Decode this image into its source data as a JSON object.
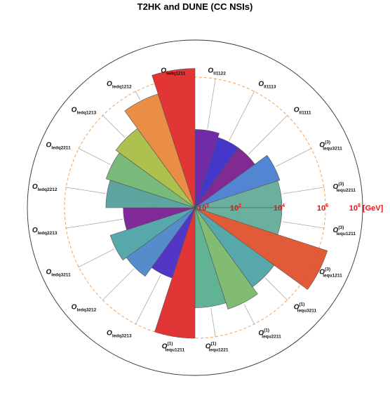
{
  "chart_data": {
    "type": "radial-bar",
    "title": "T2HK and DUNE (CC NSIs)",
    "unit_label": "[GeV]",
    "scale": "log10",
    "rlim": [
      1,
      100000000
    ],
    "ticks": [
      {
        "base": "10",
        "exp": "0"
      },
      {
        "base": "10",
        "exp": "2"
      },
      {
        "base": "10",
        "exp": "4"
      },
      {
        "base": "10",
        "exp": "6"
      },
      {
        "base": "10",
        "exp": "8"
      }
    ],
    "tick_values": [
      1,
      100,
      10000,
      1000000,
      100000000
    ],
    "dashed_rings_at": [
      100,
      1000000
    ],
    "tick_color": "#ee1111",
    "ring_color": "#f5a25a",
    "bars": [
      {
        "main": "O",
        "sub": "ll",
        "subsub": "1122",
        "sup": "",
        "value": 3981,
        "color": "#6a1fa2"
      },
      {
        "main": "O",
        "sub": "ll",
        "subsub": "1113",
        "sup": "",
        "value": 2512,
        "color": "#3c2cc8"
      },
      {
        "main": "O",
        "sub": "ll",
        "subsub": "1111",
        "sup": "",
        "value": 2512,
        "color": "#7b1f8c"
      },
      {
        "main": "O",
        "sub": "lequ",
        "subsub": "3211",
        "sup": "(3)",
        "value": 12589,
        "color": "#4a7fd0"
      },
      {
        "main": "O",
        "sub": "lequ",
        "subsub": "2211",
        "sup": "(3)",
        "value": 10000,
        "color": "#63ab98"
      },
      {
        "main": "O",
        "sub": "lequ",
        "subsub": "1211",
        "sup": "(3)",
        "value": 10000,
        "color": "#63ab98"
      },
      {
        "main": "O",
        "sub": "lequ",
        "subsub": "1211",
        "sup": "(3)",
        "value": 2511886,
        "color": "#e0522d"
      },
      {
        "main": "O",
        "sub": "lequ",
        "subsub": "3211",
        "sup": "(1)",
        "value": 31623,
        "color": "#4ea3a6"
      },
      {
        "main": "O",
        "sub": "lequ",
        "subsub": "2211",
        "sup": "(1)",
        "value": 79433,
        "color": "#7bb86a"
      },
      {
        "main": "O",
        "sub": "lequ",
        "subsub": "1221",
        "sup": "(1)",
        "value": 39811,
        "color": "#5aae8f"
      },
      {
        "main": "O",
        "sub": "lequ",
        "subsub": "1211",
        "sup": "(1)",
        "value": 1000000,
        "color": "#e02a2a"
      },
      {
        "main": "O",
        "sub": "ledq",
        "subsub": "3213",
        "sup": "",
        "value": 2512,
        "color": "#4b2bc4"
      },
      {
        "main": "O",
        "sub": "ledq",
        "subsub": "3212",
        "sup": "",
        "value": 7943,
        "color": "#4c86c8"
      },
      {
        "main": "O",
        "sub": "ledq",
        "subsub": "3211",
        "sup": "",
        "value": 12589,
        "color": "#4ea3a6"
      },
      {
        "main": "O",
        "sub": "ledq",
        "subsub": "2213",
        "sup": "",
        "value": 2000,
        "color": "#7b1f94"
      },
      {
        "main": "O",
        "sub": "ledq",
        "subsub": "2212",
        "sup": "",
        "value": 12589,
        "color": "#56a09a"
      },
      {
        "main": "O",
        "sub": "ledq",
        "subsub": "2211",
        "sup": "",
        "value": 19953,
        "color": "#72b572"
      },
      {
        "main": "O",
        "sub": "ledq",
        "subsub": "1213",
        "sup": "",
        "value": 31623,
        "color": "#a9bf45"
      },
      {
        "main": "O",
        "sub": "ledq",
        "subsub": "1212",
        "sup": "",
        "value": 316228,
        "color": "#e8883a"
      },
      {
        "main": "O",
        "sub": "ledq",
        "subsub": "1211",
        "sup": "",
        "value": 2511886,
        "color": "#e02a2a"
      }
    ]
  }
}
